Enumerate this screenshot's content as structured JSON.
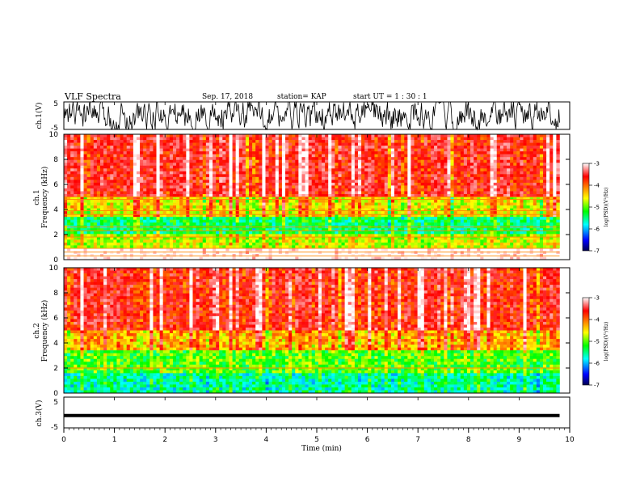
{
  "header": {
    "title": "VLF Spectra",
    "date": "Sep. 17, 2018",
    "station": "station= KAP",
    "start": "start UT =  1 : 30 : 1"
  },
  "chart_data": [
    {
      "type": "line",
      "name": "ch1-waveform",
      "ylabel": "ch.1(V)",
      "ylim": [
        -5,
        5
      ],
      "yticks": [
        "5",
        "-5"
      ],
      "xlim": [
        0,
        10
      ],
      "values_summary": "noisy signal spanning full range -5 to 5 V over 0 to 9.8 min"
    },
    {
      "type": "heatmap",
      "name": "ch1-spectrogram",
      "ylabel": "ch.1 Frequency (kHz)",
      "ylim": [
        0,
        10
      ],
      "yticks": [
        "0",
        "2",
        "4",
        "6",
        "8",
        "10"
      ],
      "xlim": [
        0,
        9.8
      ],
      "colorbar": {
        "label": "log(PSD)(V²/Hz)",
        "range": [
          -7,
          -3
        ],
        "ticks": [
          "-3",
          "-4",
          "-5",
          "-6",
          "-7"
        ]
      },
      "bands": [
        {
          "from_khz": 0,
          "to_khz": 1,
          "level": -2.5,
          "note": "low-frequency lines"
        },
        {
          "from_khz": 1,
          "to_khz": 2,
          "level": -4.7
        },
        {
          "from_khz": 2,
          "to_khz": 3.5,
          "level": -5.4
        },
        {
          "from_khz": 3.5,
          "to_khz": 5,
          "level": -4.5
        },
        {
          "from_khz": 5,
          "to_khz": 10,
          "level": -3.5
        }
      ],
      "horizontal_lines_khz": [
        0.3,
        0.6,
        0.9,
        1.8,
        2.3,
        2.6,
        3.6,
        3.9,
        4.8,
        5.0
      ]
    },
    {
      "type": "heatmap",
      "name": "ch2-spectrogram",
      "ylabel": "ch.2 Frequency (kHz)",
      "ylim": [
        0,
        10
      ],
      "yticks": [
        "0",
        "2",
        "4",
        "6",
        "8",
        "10"
      ],
      "xlim": [
        0,
        9.8
      ],
      "colorbar": {
        "label": "log(PSD)(V²/Hz)",
        "range": [
          -7,
          -3
        ],
        "ticks": [
          "-3",
          "-4",
          "-5",
          "-6",
          "-7"
        ]
      },
      "bands": [
        {
          "from_khz": 0,
          "to_khz": 1.5,
          "level": -5.6
        },
        {
          "from_khz": 1.5,
          "to_khz": 3.5,
          "level": -5.1
        },
        {
          "from_khz": 3.5,
          "to_khz": 5,
          "level": -4.3
        },
        {
          "from_khz": 5,
          "to_khz": 10,
          "level": -3.6
        }
      ],
      "horizontal_lines_khz": [
        2.0
      ]
    },
    {
      "type": "line",
      "name": "ch3-waveform",
      "ylabel": "ch.3(V)",
      "ylim": [
        -5,
        5
      ],
      "yticks": [
        "5",
        "-5"
      ],
      "xlim": [
        0,
        9.8
      ],
      "x": [
        0,
        9.8
      ],
      "values": [
        -1,
        -1
      ]
    }
  ],
  "xaxis": {
    "label": "Time (min)",
    "ticks": [
      "0",
      "1",
      "2",
      "3",
      "4",
      "5",
      "6",
      "7",
      "8",
      "9",
      "10"
    ],
    "range": [
      0,
      10
    ]
  },
  "colors": {
    "dark_blue": "#00008b",
    "blue": "#0000ff",
    "cyan": "#00ffff",
    "green": "#00ff00",
    "yellow": "#ffff00",
    "orange": "#ff8800",
    "red": "#ff0000",
    "white": "#ffffff"
  }
}
